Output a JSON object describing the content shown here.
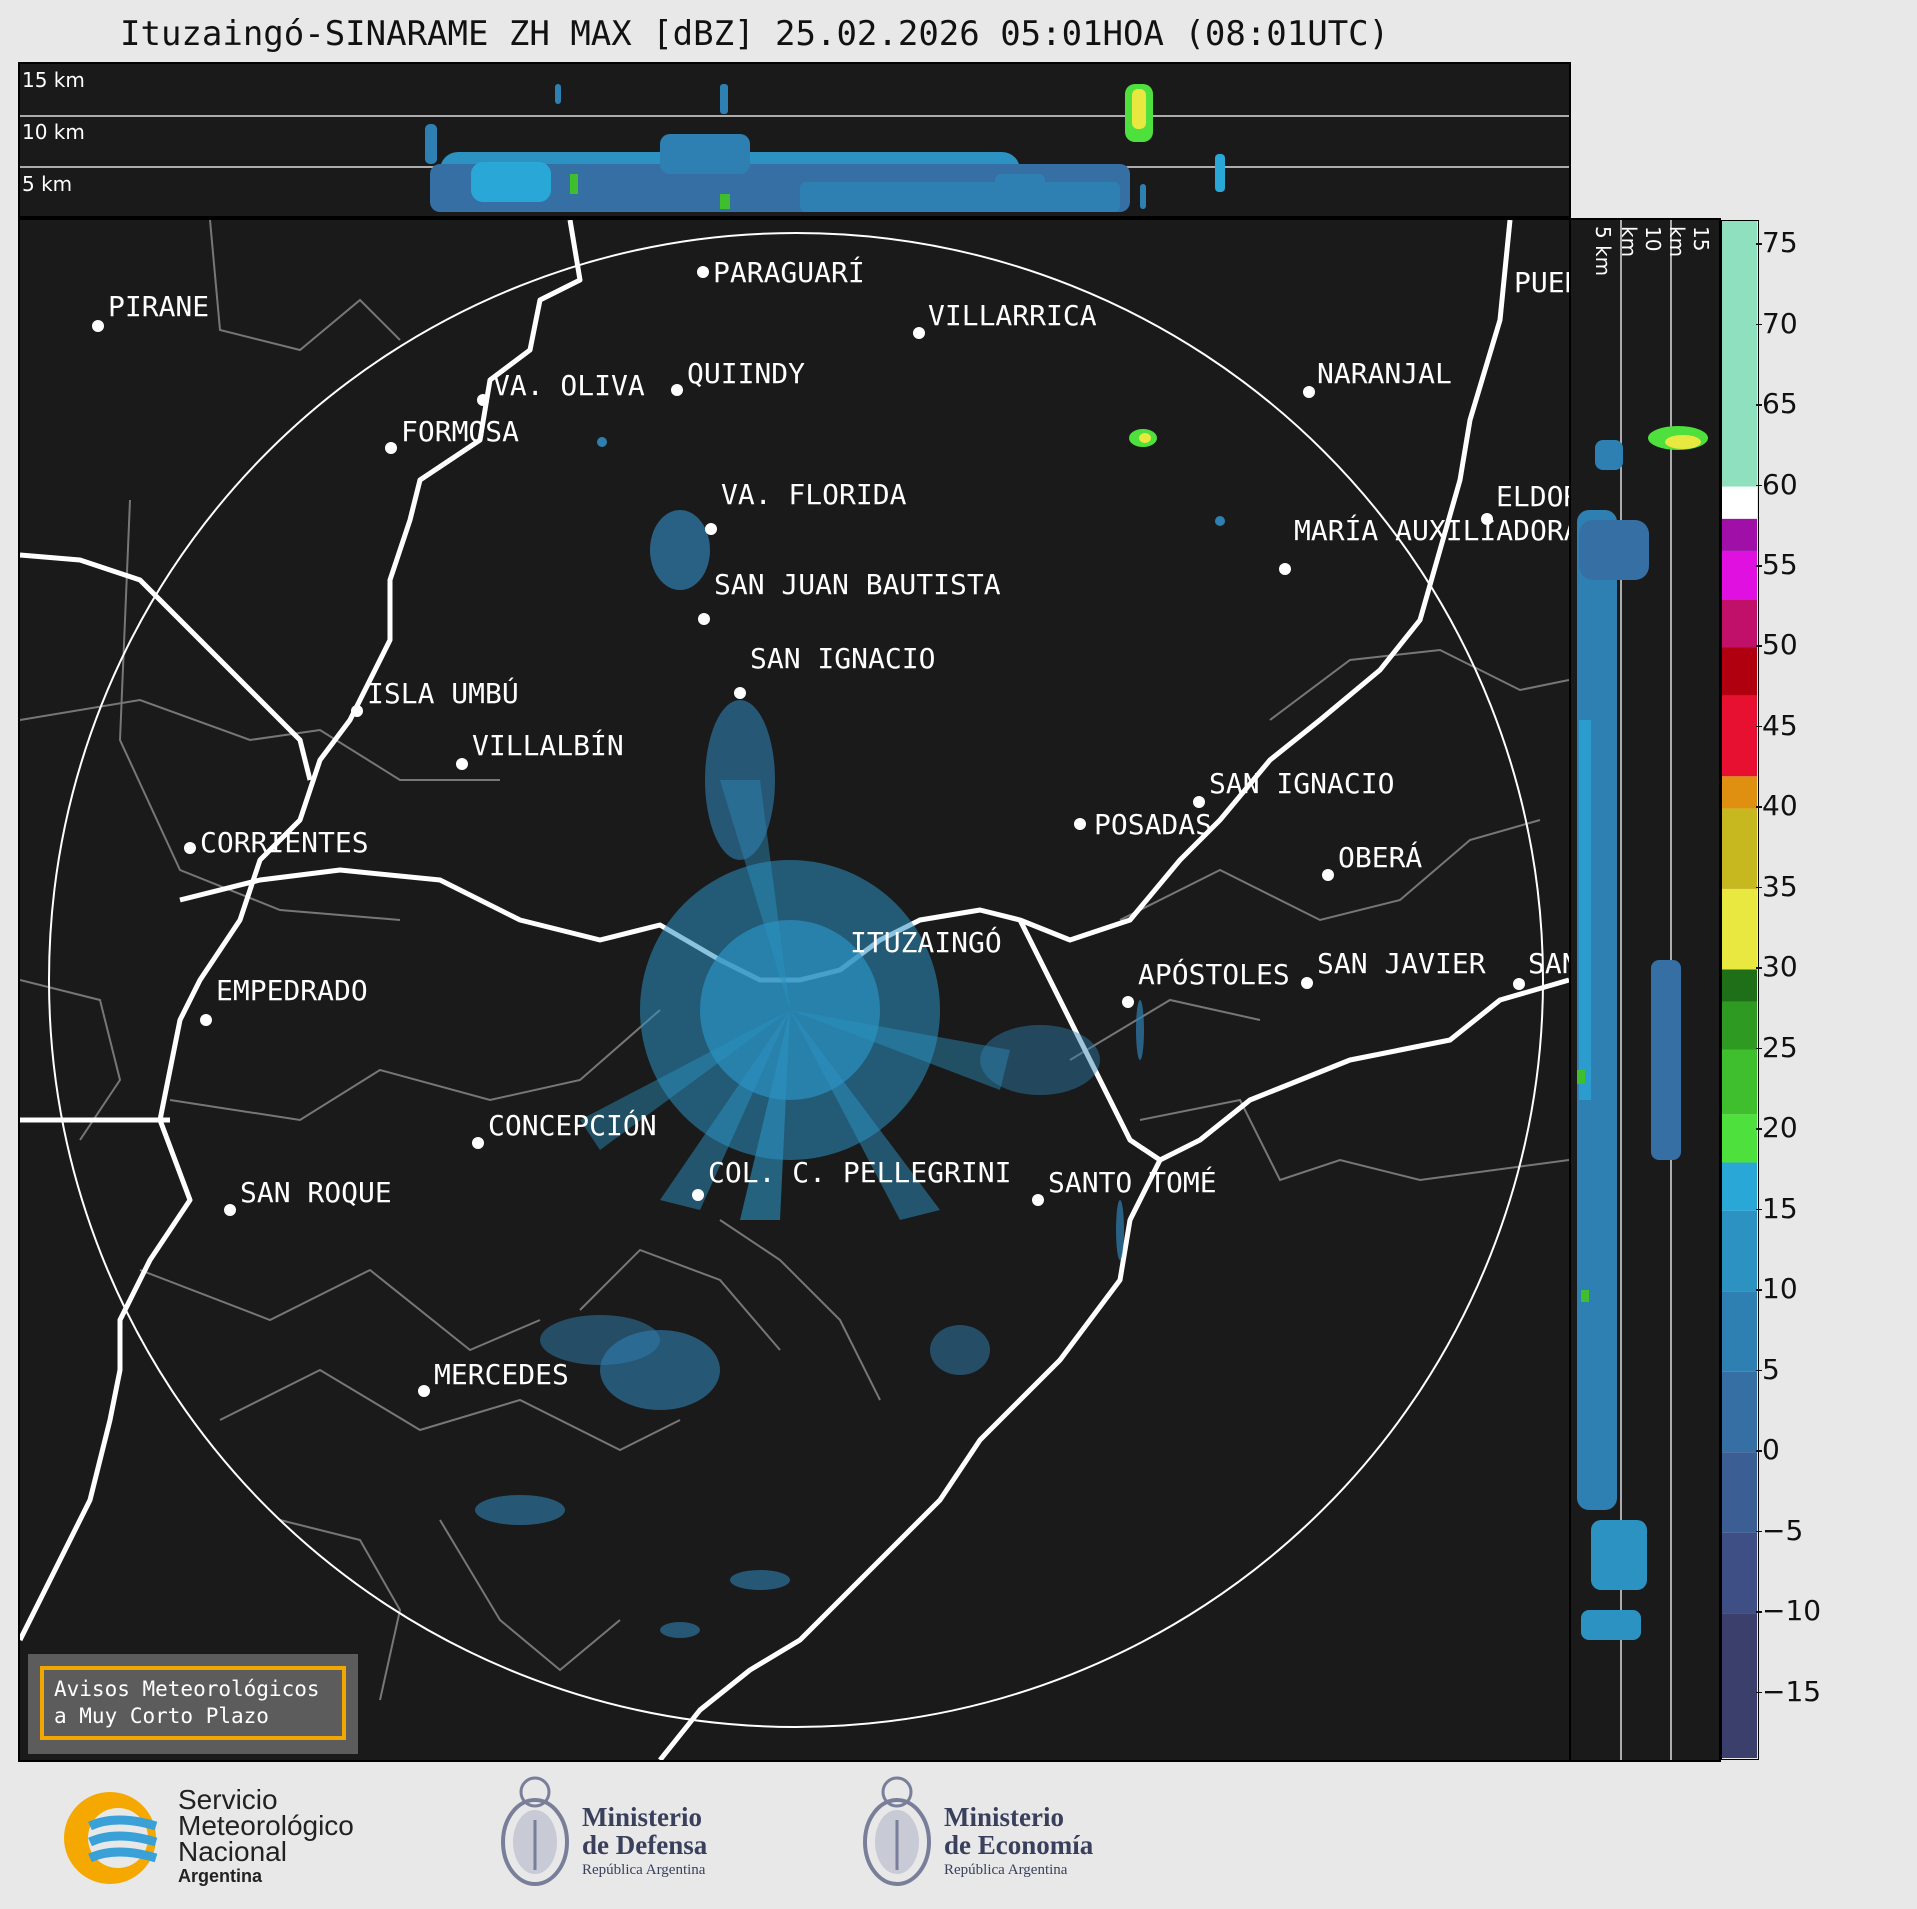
{
  "title": "Ituzaingó-SINARAME ZH MAX [dBZ] 25.02.2026 05:01HOA (08:01UTC)",
  "top_panel": {
    "altitudes": [
      "15 km",
      "10 km",
      "5 km"
    ]
  },
  "side_panel": {
    "altitudes": [
      "5 km",
      "10 km",
      "15 km"
    ]
  },
  "colorbar": {
    "ticks": [
      "75",
      "70",
      "65",
      "60",
      "55",
      "50",
      "45",
      "40",
      "35",
      "30",
      "25",
      "20",
      "15",
      "10",
      "5",
      "0",
      "−5",
      "−10",
      "−15"
    ],
    "min": -19,
    "max": 76.5,
    "bands": [
      {
        "from": -19,
        "to": -10,
        "color": "#3a3f6b"
      },
      {
        "from": -10,
        "to": -5,
        "color": "#3d4f85"
      },
      {
        "from": -5,
        "to": 0,
        "color": "#3b5f95"
      },
      {
        "from": 0,
        "to": 5,
        "color": "#356fa3"
      },
      {
        "from": 5,
        "to": 10,
        "color": "#2f80b2"
      },
      {
        "from": 10,
        "to": 15,
        "color": "#2b92c2"
      },
      {
        "from": 15,
        "to": 18,
        "color": "#29a8d8"
      },
      {
        "from": 18,
        "to": 21,
        "color": "#4ee03c"
      },
      {
        "from": 21,
        "to": 25,
        "color": "#3fbf2e"
      },
      {
        "from": 25,
        "to": 28,
        "color": "#2f9a22"
      },
      {
        "from": 28,
        "to": 30,
        "color": "#1f6e18"
      },
      {
        "from": 30,
        "to": 35,
        "color": "#e8e840"
      },
      {
        "from": 35,
        "to": 40,
        "color": "#c8b820"
      },
      {
        "from": 40,
        "to": 42,
        "color": "#e09010"
      },
      {
        "from": 42,
        "to": 47,
        "color": "#e81030"
      },
      {
        "from": 47,
        "to": 50,
        "color": "#b00010"
      },
      {
        "from": 50,
        "to": 53,
        "color": "#c0106a"
      },
      {
        "from": 53,
        "to": 56,
        "color": "#e010e0"
      },
      {
        "from": 56,
        "to": 58,
        "color": "#a010a8"
      },
      {
        "from": 58,
        "to": 60,
        "color": "#ffffff"
      },
      {
        "from": 60,
        "to": 76.5,
        "color": "#8ee0bf"
      }
    ]
  },
  "radar": {
    "name": "ITUZAINGÓ"
  },
  "cities": [
    {
      "name": "PARAGUARÍ"
    },
    {
      "name": "PIRANE"
    },
    {
      "name": "VILLARRICA"
    },
    {
      "name": "QUIINDY"
    },
    {
      "name": "VA. OLIVA"
    },
    {
      "name": "NARANJAL"
    },
    {
      "name": "FORMOSA"
    },
    {
      "name": "VA. FLORIDA"
    },
    {
      "name": "ELDORADO"
    },
    {
      "name": "MARÍA AUXILIADORA"
    },
    {
      "name": "SAN JUAN BAUTISTA"
    },
    {
      "name": "SAN IGNACIO"
    },
    {
      "name": "ISLA UMBÚ"
    },
    {
      "name": "VILLALBÍN"
    },
    {
      "name": "SAN IGNACIO"
    },
    {
      "name": "POSADAS"
    },
    {
      "name": "CORRIENTES"
    },
    {
      "name": "OBERÁ"
    },
    {
      "name": "APÓSTOLES"
    },
    {
      "name": "SAN JAVIER"
    },
    {
      "name": "SAN VICENTE"
    },
    {
      "name": "EMPEDRADO"
    },
    {
      "name": "CONCEPCIÓN"
    },
    {
      "name": "COL. C. PELLEGRINI"
    },
    {
      "name": "SANTO TOMÉ"
    },
    {
      "name": "SAN ROQUE"
    },
    {
      "name": "MERCEDES"
    },
    {
      "name": "PUERTO ESPERANZA"
    }
  ],
  "alert": {
    "line1": "Avisos Meteorológicos",
    "line2": "a Muy Corto Plazo"
  },
  "logos": {
    "smn": {
      "line1": "Servicio",
      "line2": "Meteorológico",
      "line3": "Nacional",
      "line4": "Argentina"
    },
    "defensa": {
      "line1": "Ministerio",
      "line2": "de Defensa",
      "line3": "República Argentina"
    },
    "economia": {
      "line1": "Ministerio",
      "line2": "de Economía",
      "line3": "República Argentina"
    }
  }
}
